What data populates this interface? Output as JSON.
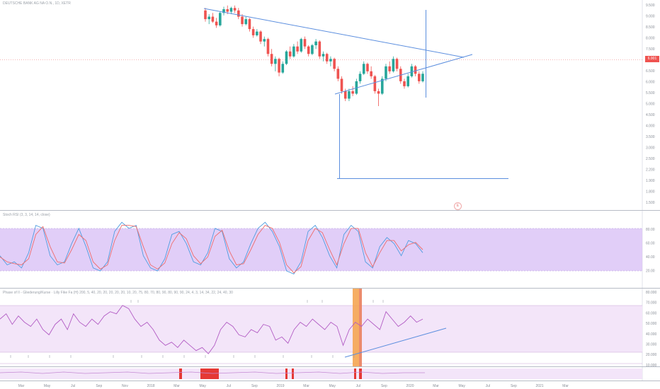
{
  "header": {
    "symbol_title": "DEUTSCHE BANK AG NA O.N., 1D, XETR",
    "stoch_title": "Stoch RSI (3, 3, 14, 14, close)",
    "pmi_title": "Phase of II - Gliederung/Kurse · Lilly Fike Fa (H) 200, 5, 40, 20, 20, 20, 20, 20, 10, 20, 75, 80, 70, 80, 90, 80, 90, 90, 24, 4, 3, 14, 34, 22, 24, 40, 30"
  },
  "price_tag": "6.901",
  "colors": {
    "up": "#26a69a",
    "down": "#ef5350",
    "trendline": "#5b8ede",
    "stoch_band": "#d9c2f5",
    "stoch_k": "#4f9de0",
    "stoch_d": "#ef6c6c",
    "pmi_band": "#f1e3f8",
    "pmi_line": "#b25cc4",
    "highlight": "#f5a552",
    "alert": "#e53935"
  },
  "event_badge": "E",
  "chart_data": [
    {
      "type": "candlestick",
      "title": "",
      "y_axis_labels": [
        "9.500",
        "9.000",
        "8.500",
        "8.000",
        "7.500",
        "7.000",
        "6.500",
        "6.000",
        "5.500",
        "5.000",
        "4.500",
        "4.000",
        "3.500",
        "3.000",
        "2.500",
        "2.200",
        "1.900",
        "1.800",
        "1.500"
      ],
      "ylim": [
        1.5,
        9.7
      ],
      "last_price": 6.901,
      "candles": [
        {
          "o": 9.45,
          "h": 9.55,
          "l": 9.0,
          "c": 9.1
        },
        {
          "o": 9.1,
          "h": 9.3,
          "l": 8.9,
          "c": 9.2
        },
        {
          "o": 9.2,
          "h": 9.35,
          "l": 8.95,
          "c": 9.0
        },
        {
          "o": 9.0,
          "h": 9.15,
          "l": 8.75,
          "c": 8.85
        },
        {
          "o": 8.85,
          "h": 9.4,
          "l": 8.8,
          "c": 9.35
        },
        {
          "o": 9.35,
          "h": 9.6,
          "l": 9.25,
          "c": 9.5
        },
        {
          "o": 9.5,
          "h": 9.65,
          "l": 9.3,
          "c": 9.4
        },
        {
          "o": 9.4,
          "h": 9.6,
          "l": 9.3,
          "c": 9.55
        },
        {
          "o": 9.55,
          "h": 9.65,
          "l": 9.35,
          "c": 9.45
        },
        {
          "o": 9.45,
          "h": 9.55,
          "l": 9.1,
          "c": 9.2
        },
        {
          "o": 9.2,
          "h": 9.3,
          "l": 8.8,
          "c": 8.9
        },
        {
          "o": 8.9,
          "h": 9.2,
          "l": 8.85,
          "c": 9.1
        },
        {
          "o": 9.1,
          "h": 9.15,
          "l": 8.6,
          "c": 8.7
        },
        {
          "o": 8.7,
          "h": 8.8,
          "l": 8.35,
          "c": 8.45
        },
        {
          "o": 8.45,
          "h": 8.7,
          "l": 8.4,
          "c": 8.6
        },
        {
          "o": 8.6,
          "h": 8.65,
          "l": 8.1,
          "c": 8.2
        },
        {
          "o": 8.2,
          "h": 8.4,
          "l": 8.0,
          "c": 8.3
        },
        {
          "o": 8.3,
          "h": 8.35,
          "l": 7.6,
          "c": 7.7
        },
        {
          "o": 7.7,
          "h": 7.9,
          "l": 7.2,
          "c": 7.3
        },
        {
          "o": 7.3,
          "h": 7.6,
          "l": 7.0,
          "c": 7.5
        },
        {
          "o": 7.5,
          "h": 7.55,
          "l": 6.8,
          "c": 6.95
        },
        {
          "o": 6.95,
          "h": 7.4,
          "l": 6.9,
          "c": 7.3
        },
        {
          "o": 7.3,
          "h": 7.85,
          "l": 7.25,
          "c": 7.8
        },
        {
          "o": 7.8,
          "h": 8.0,
          "l": 7.5,
          "c": 7.6
        },
        {
          "o": 7.6,
          "h": 8.1,
          "l": 7.55,
          "c": 8.0
        },
        {
          "o": 8.0,
          "h": 8.2,
          "l": 7.7,
          "c": 7.8
        },
        {
          "o": 7.8,
          "h": 8.35,
          "l": 7.75,
          "c": 8.3
        },
        {
          "o": 8.3,
          "h": 8.4,
          "l": 7.9,
          "c": 8.0
        },
        {
          "o": 8.0,
          "h": 8.05,
          "l": 7.6,
          "c": 7.7
        },
        {
          "o": 7.7,
          "h": 8.1,
          "l": 7.65,
          "c": 8.05
        },
        {
          "o": 8.05,
          "h": 8.3,
          "l": 7.9,
          "c": 8.2
        },
        {
          "o": 8.2,
          "h": 8.25,
          "l": 7.5,
          "c": 7.6
        },
        {
          "o": 7.6,
          "h": 7.8,
          "l": 7.4,
          "c": 7.7
        },
        {
          "o": 7.7,
          "h": 7.75,
          "l": 7.3,
          "c": 7.4
        },
        {
          "o": 7.4,
          "h": 7.6,
          "l": 7.2,
          "c": 7.5
        },
        {
          "o": 7.5,
          "h": 7.55,
          "l": 7.0,
          "c": 7.1
        },
        {
          "o": 7.1,
          "h": 7.2,
          "l": 6.6,
          "c": 6.7
        },
        {
          "o": 6.7,
          "h": 6.8,
          "l": 6.1,
          "c": 6.2
        },
        {
          "o": 6.2,
          "h": 6.3,
          "l": 5.8,
          "c": 5.9
        },
        {
          "o": 5.9,
          "h": 6.3,
          "l": 5.8,
          "c": 6.2
        },
        {
          "o": 6.2,
          "h": 6.4,
          "l": 6.0,
          "c": 6.1
        },
        {
          "o": 6.1,
          "h": 6.7,
          "l": 6.05,
          "c": 6.6
        },
        {
          "o": 6.6,
          "h": 7.0,
          "l": 6.5,
          "c": 6.9
        },
        {
          "o": 6.9,
          "h": 7.4,
          "l": 6.85,
          "c": 7.3
        },
        {
          "o": 7.3,
          "h": 7.35,
          "l": 6.9,
          "c": 7.0
        },
        {
          "o": 7.0,
          "h": 7.2,
          "l": 6.7,
          "c": 6.8
        },
        {
          "o": 6.8,
          "h": 6.85,
          "l": 6.1,
          "c": 6.2
        },
        {
          "o": 6.2,
          "h": 6.3,
          "l": 5.6,
          "c": 6.1
        },
        {
          "o": 6.1,
          "h": 6.8,
          "l": 6.05,
          "c": 6.7
        },
        {
          "o": 6.7,
          "h": 7.3,
          "l": 6.6,
          "c": 7.2
        },
        {
          "o": 7.2,
          "h": 7.4,
          "l": 6.9,
          "c": 7.0
        },
        {
          "o": 7.0,
          "h": 7.6,
          "l": 6.95,
          "c": 7.5
        },
        {
          "o": 7.5,
          "h": 7.55,
          "l": 7.0,
          "c": 7.1
        },
        {
          "o": 7.1,
          "h": 7.2,
          "l": 6.5,
          "c": 6.6
        },
        {
          "o": 6.6,
          "h": 6.7,
          "l": 6.3,
          "c": 6.4
        },
        {
          "o": 6.4,
          "h": 6.9,
          "l": 6.35,
          "c": 6.8
        },
        {
          "o": 6.8,
          "h": 7.3,
          "l": 6.75,
          "c": 7.2
        },
        {
          "o": 7.2,
          "h": 7.25,
          "l": 6.8,
          "c": 6.9
        },
        {
          "o": 6.9,
          "h": 7.0,
          "l": 6.5,
          "c": 6.6
        },
        {
          "o": 6.6,
          "h": 7.0,
          "l": 6.55,
          "c": 6.901
        }
      ]
    },
    {
      "type": "line",
      "title": "Stoch RSI (3, 3, 14, 14, close)",
      "y_axis_labels": [
        "80.00",
        "60.00",
        "40.00",
        "20.00"
      ],
      "ylim": [
        0,
        100
      ],
      "band": [
        20,
        80
      ],
      "series": [
        {
          "name": "K",
          "values": [
            40,
            25,
            30,
            20,
            45,
            90,
            85,
            40,
            25,
            30,
            60,
            85,
            55,
            20,
            15,
            30,
            80,
            95,
            85,
            90,
            40,
            20,
            15,
            35,
            75,
            80,
            60,
            30,
            25,
            45,
            85,
            80,
            35,
            20,
            30,
            60,
            85,
            95,
            80,
            55,
            15,
            10,
            30,
            80,
            90,
            70,
            40,
            20,
            75,
            90,
            80,
            30,
            20,
            55,
            70,
            60,
            40,
            65,
            60,
            45
          ]
        },
        {
          "name": "D",
          "values": [
            38,
            30,
            27,
            25,
            35,
            75,
            88,
            55,
            30,
            28,
            50,
            75,
            65,
            30,
            18,
            25,
            65,
            90,
            90,
            88,
            55,
            25,
            18,
            28,
            60,
            78,
            68,
            40,
            27,
            38,
            72,
            82,
            48,
            25,
            27,
            50,
            75,
            90,
            85,
            62,
            25,
            12,
            22,
            65,
            85,
            78,
            50,
            25,
            60,
            85,
            85,
            45,
            22,
            45,
            65,
            65,
            48,
            58,
            62,
            50
          ]
        }
      ]
    },
    {
      "type": "line",
      "y_axis_labels": [
        "80.000",
        "70.000",
        "60.000",
        "50.000",
        "40.000",
        "30.000",
        "20.000",
        "10.000"
      ],
      "ylim": [
        10,
        80
      ],
      "band": [
        30,
        70
      ],
      "series": [
        {
          "name": "",
          "values": [
            55,
            60,
            50,
            58,
            52,
            48,
            55,
            45,
            40,
            50,
            55,
            45,
            60,
            52,
            48,
            55,
            50,
            58,
            62,
            60,
            68,
            65,
            55,
            48,
            52,
            45,
            35,
            30,
            33,
            28,
            35,
            30,
            25,
            28,
            22,
            30,
            45,
            52,
            48,
            40,
            38,
            45,
            42,
            50,
            48,
            35,
            38,
            32,
            45,
            52,
            48,
            55,
            50,
            45,
            52,
            48,
            30,
            45,
            52,
            48,
            55,
            50,
            45,
            62,
            55,
            48,
            52,
            58,
            52,
            55
          ]
        }
      ]
    }
  ],
  "x_axis_labels": [
    "Mar",
    "May",
    "Jul",
    "Sep",
    "Nov",
    "2018",
    "Mar",
    "May",
    "Jul",
    "Sep",
    "2019",
    "Mar",
    "May",
    "Jul",
    "Sep",
    "2020",
    "Mar",
    "May",
    "Jul",
    "Sep",
    "2021",
    "Mar"
  ]
}
